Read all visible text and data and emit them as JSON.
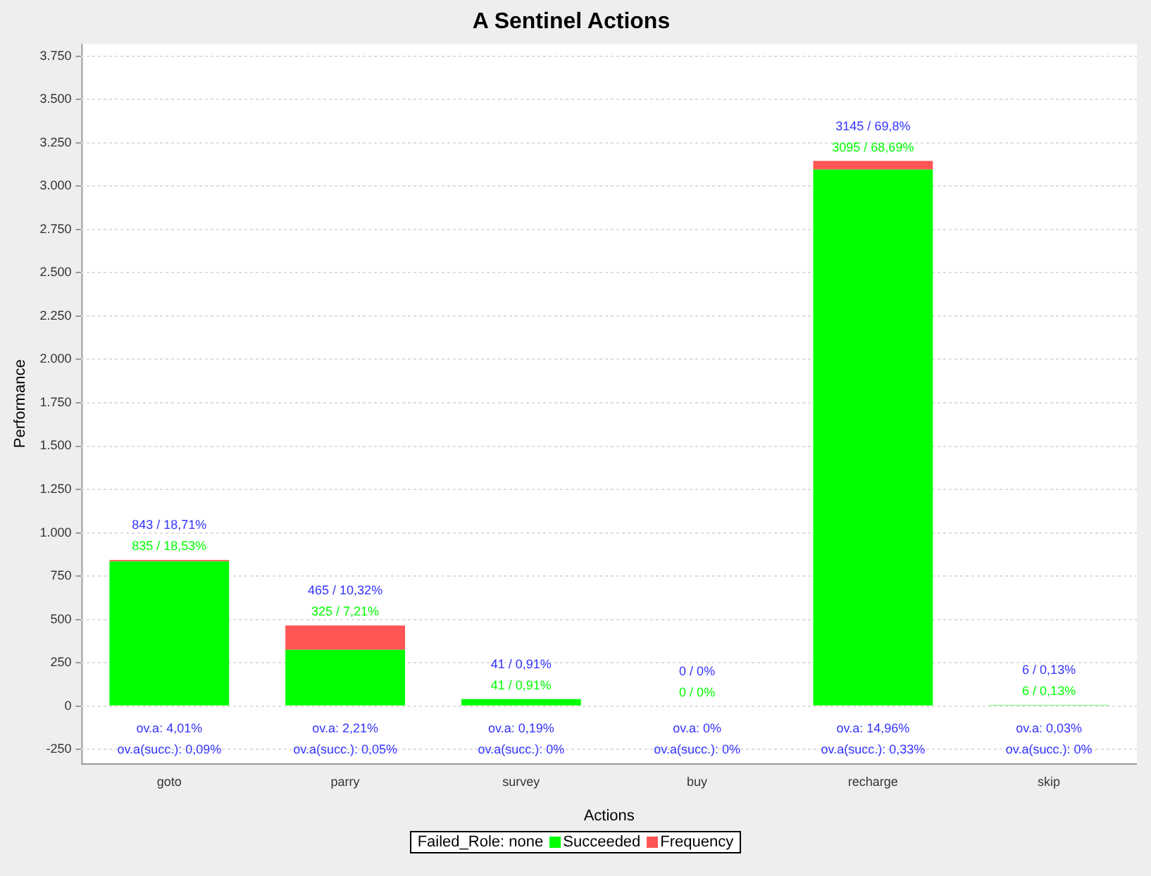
{
  "chart_data": {
    "type": "bar",
    "title": "A Sentinel Actions",
    "xlabel": "Actions",
    "ylabel": "Performance",
    "legend_title": "Failed_Role: none",
    "categories": [
      "goto",
      "parry",
      "survey",
      "buy",
      "recharge",
      "skip"
    ],
    "stacked": true,
    "series": [
      {
        "name": "Succeeded",
        "color": "#00ff00",
        "values": [
          835,
          325,
          41,
          0,
          3095,
          6
        ],
        "value_labels": [
          "835 / 18,53%",
          "325 / 7,21%",
          "41 / 0,91%",
          "0 / 0%",
          "3095 / 68,69%",
          "6 / 0,13%"
        ]
      },
      {
        "name": "Frequency",
        "color": "#ff5555",
        "values": [
          8,
          140,
          0,
          0,
          50,
          0
        ]
      }
    ],
    "totals": [
      "843 / 18,71%",
      "465 / 10,32%",
      "41 / 0,91%",
      "0 / 0%",
      "3145 / 69,8%",
      "6 / 0,13%"
    ],
    "ylim": [
      -330,
      3820
    ],
    "yticks": [
      {
        "value": -250,
        "label": "-250"
      },
      0,
      250,
      500,
      750,
      {
        "value": 1000,
        "label": "1.000"
      },
      {
        "value": 1250,
        "label": "1.250"
      },
      {
        "value": 1500,
        "label": "1.500"
      },
      {
        "value": 1750,
        "label": "1.750"
      },
      {
        "value": 2000,
        "label": "2.000"
      },
      {
        "value": 2250,
        "label": "2.250"
      },
      {
        "value": 2500,
        "label": "2.500"
      },
      {
        "value": 2750,
        "label": "2.750"
      },
      {
        "value": 3000,
        "label": "3.000"
      },
      {
        "value": 3250,
        "label": "3.250"
      },
      {
        "value": 3500,
        "label": "3.500"
      },
      {
        "value": 3750,
        "label": "3.750"
      }
    ],
    "grid": "y",
    "legend": "bottom",
    "annotations": [
      "ov.a: 4,01%",
      "ov.a(succ.): 0,09%",
      "ov.a: 2,21%",
      "ov.a(succ.): 0,05%",
      "ov.a: 0,19%",
      "ov.a(succ.): 0%",
      "ov.a: 0%",
      "ov.a(succ.): 0%",
      "ov.a: 14,96%",
      "ov.a(succ.): 0,33%",
      "ov.a: 0,03%",
      "ov.a(succ.): 0%"
    ]
  }
}
